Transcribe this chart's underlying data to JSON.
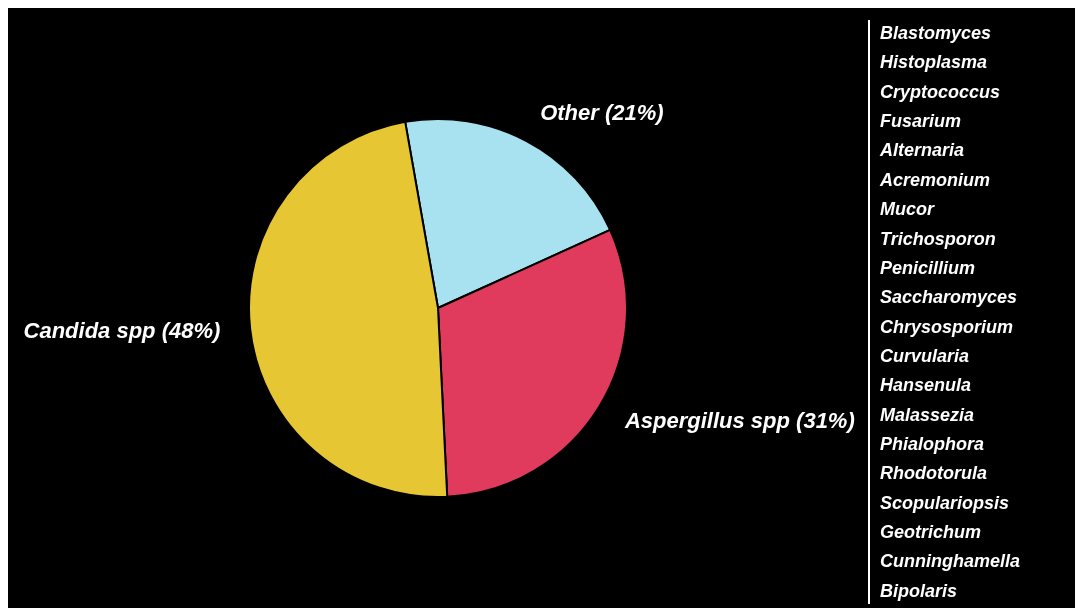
{
  "chart_data": {
    "type": "pie",
    "categories": [
      "Other (21%)",
      "Aspergillus spp (31%)",
      "Candida spp (48%)"
    ],
    "values": [
      21,
      31,
      48
    ],
    "colors": [
      "#a8e2f0",
      "#e03a5c",
      "#e6c632"
    ],
    "legend": false,
    "annotations": [
      "Blastomyces",
      "Histoplasma",
      "Cryptococcus",
      "Fusarium",
      "Alternaria",
      "Acremonium",
      "Mucor",
      "Trichosporon",
      "Penicillium",
      "Saccharomyces",
      "Chrysosporium",
      "Curvularia",
      "Hansenula",
      "Malassezia",
      "Phialophora",
      "Rhodotorula",
      "Scopulariopsis",
      "Geotrichum",
      "Cunninghamella",
      "Bipolaris"
    ]
  }
}
